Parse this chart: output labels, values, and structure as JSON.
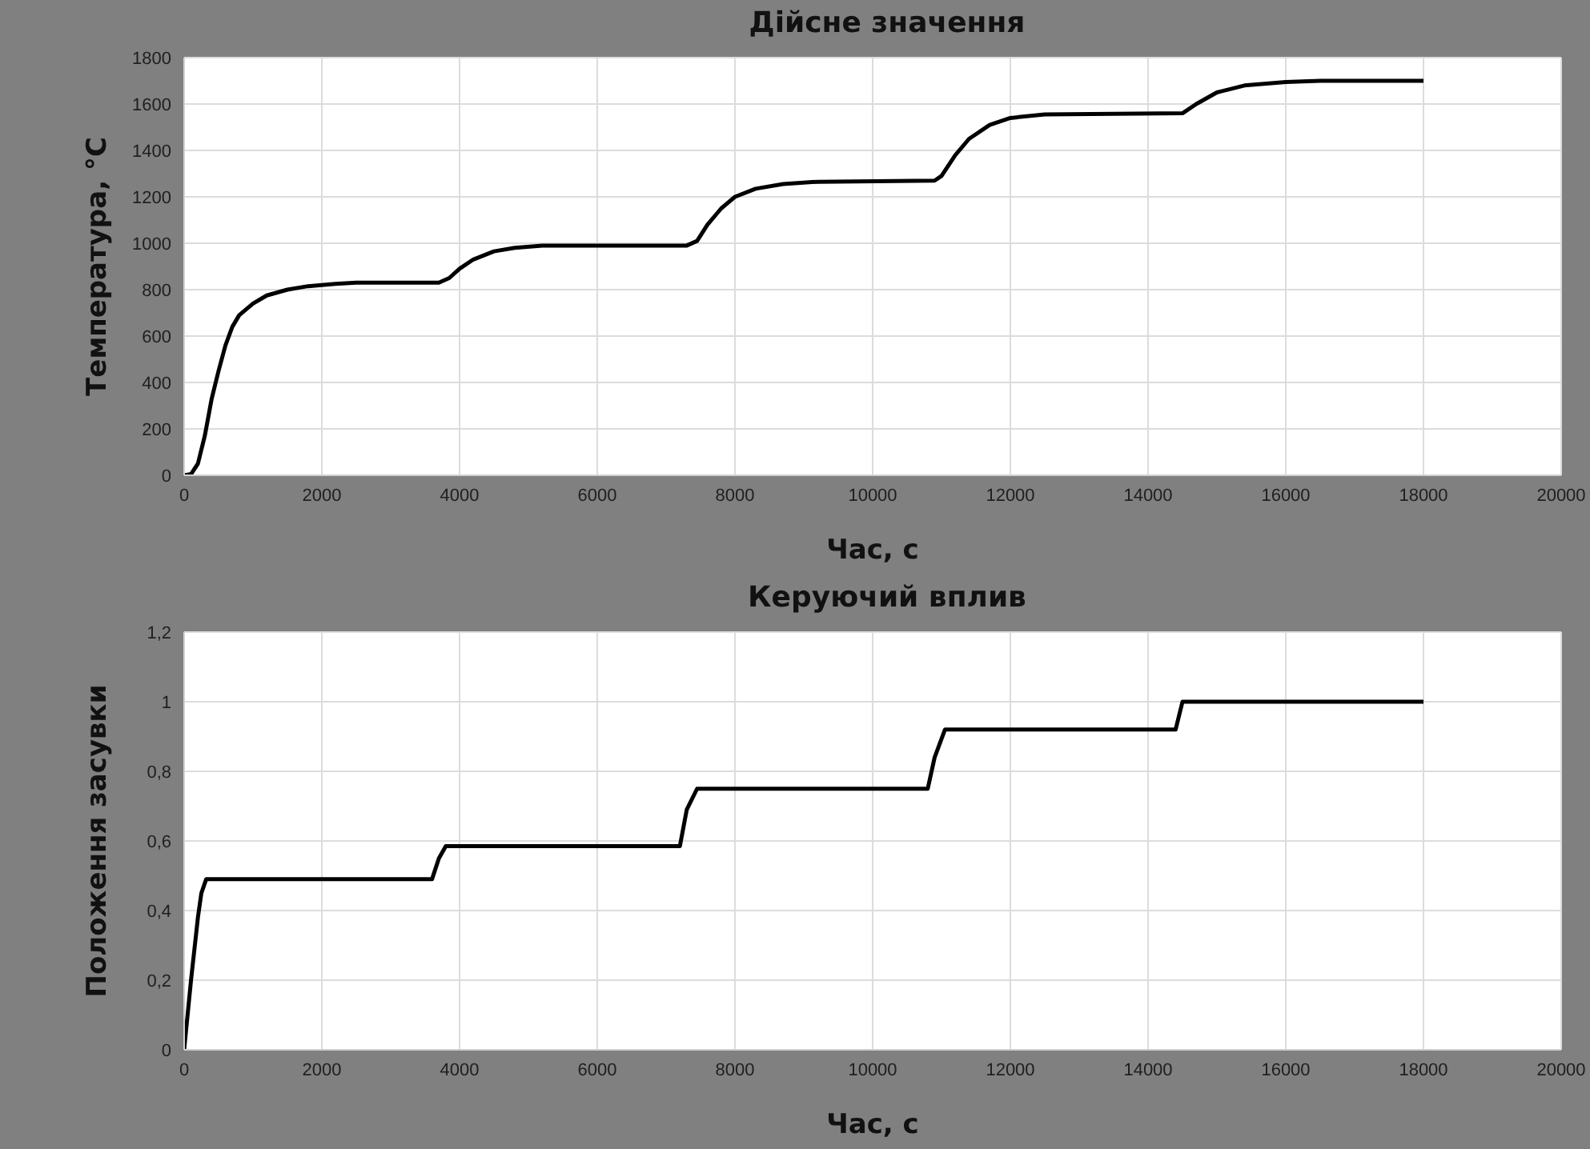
{
  "chart_data": [
    {
      "type": "line",
      "title": "Дійсне значення",
      "xlabel": "Час, с",
      "ylabel": "Температура, °C",
      "xlim": [
        0,
        20000
      ],
      "xticks": [
        0,
        2000,
        4000,
        6000,
        8000,
        10000,
        12000,
        14000,
        16000,
        18000,
        20000
      ],
      "ylim": [
        0,
        1800
      ],
      "yticks": [
        0,
        200,
        400,
        600,
        800,
        1000,
        1200,
        1400,
        1600,
        1800
      ],
      "grid": true,
      "marker": "none",
      "line_style": "solid",
      "series": [
        {
          "color": "#000000",
          "x": [
            0,
            100,
            200,
            300,
            400,
            500,
            600,
            700,
            800,
            1000,
            1200,
            1500,
            1800,
            2200,
            2500,
            3700,
            3850,
            4000,
            4200,
            4500,
            4800,
            5200,
            7300,
            7450,
            7600,
            7800,
            8000,
            8300,
            8700,
            9200,
            10900,
            11000,
            11200,
            11400,
            11700,
            12000,
            12500,
            14500,
            14700,
            15000,
            15400,
            16000,
            16500,
            18000
          ],
          "values": [
            0,
            5,
            50,
            170,
            330,
            450,
            560,
            640,
            690,
            740,
            775,
            800,
            815,
            825,
            830,
            830,
            850,
            890,
            930,
            965,
            980,
            990,
            990,
            1010,
            1080,
            1150,
            1200,
            1235,
            1255,
            1265,
            1270,
            1290,
            1380,
            1450,
            1510,
            1540,
            1555,
            1560,
            1600,
            1650,
            1680,
            1695,
            1700,
            1700
          ]
        }
      ]
    },
    {
      "type": "line",
      "title": "Керуючий вплив",
      "xlabel": "Час, с",
      "ylabel": "Положення засувки",
      "xlim": [
        0,
        20000
      ],
      "xticks": [
        0,
        2000,
        4000,
        6000,
        8000,
        10000,
        12000,
        14000,
        16000,
        18000,
        20000
      ],
      "ylim": [
        0,
        1.2
      ],
      "yticks": [
        0,
        {
          "value": 0.2,
          "label": "0,2"
        },
        {
          "value": 0.4,
          "label": "0,4"
        },
        {
          "value": 0.6,
          "label": "0,6"
        },
        {
          "value": 0.8,
          "label": "0,8"
        },
        1,
        {
          "value": 1.2,
          "label": "1,2"
        }
      ],
      "grid": true,
      "marker": "none",
      "line_style": "solid",
      "series": [
        {
          "color": "#000000",
          "x": [
            0,
            100,
            200,
            250,
            320,
            3600,
            3700,
            3800,
            7200,
            7300,
            7450,
            10800,
            10900,
            11050,
            14400,
            14500,
            18000
          ],
          "values": [
            0,
            0.2,
            0.38,
            0.45,
            0.49,
            0.49,
            0.55,
            0.585,
            0.585,
            0.69,
            0.75,
            0.75,
            0.84,
            0.92,
            0.92,
            1,
            1
          ]
        }
      ]
    }
  ]
}
